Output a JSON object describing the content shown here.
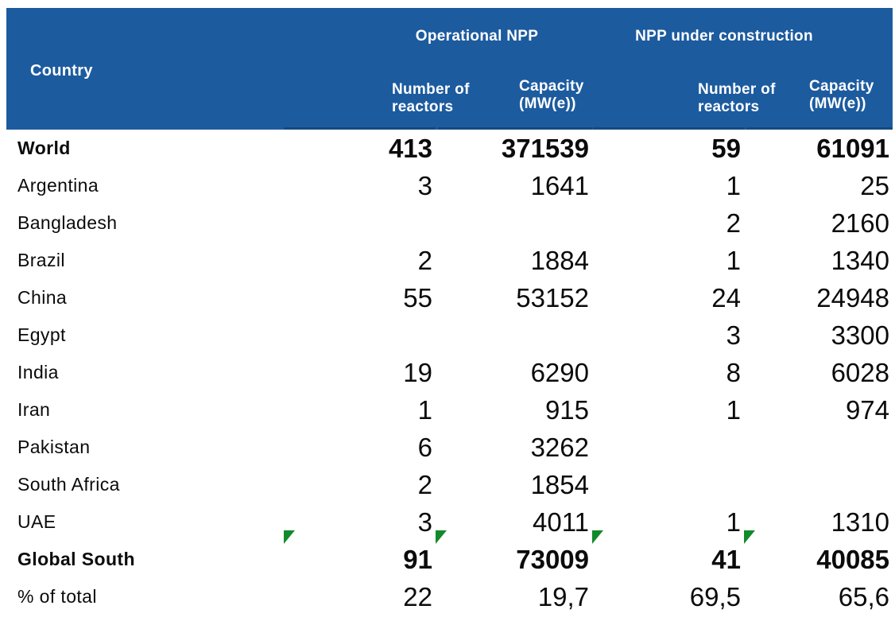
{
  "colors": {
    "header_bg": "#1d5b9f",
    "header_text": "#ffffff",
    "header_edge": "#16497f",
    "flag_green": "#118a2b",
    "body_text": "#0b0b0b"
  },
  "table": {
    "header": {
      "country_label": "Country",
      "group_operational": "Operational NPP",
      "group_construction": "NPP under construction",
      "sub_operational_reactors": {
        "line1": "Number of",
        "line2": "reactors"
      },
      "sub_operational_capacity": {
        "line1": "Capacity",
        "line2": "(MW(e))"
      },
      "sub_construction_reactors": {
        "line1": "Number of",
        "line2": "reactors"
      },
      "sub_construction_capacity": {
        "line1": "Capacity",
        "line2": "(MW(e))"
      }
    },
    "rows": [
      {
        "country": "World",
        "op_reactors": "413",
        "op_capacity": "371539",
        "uc_reactors": "59",
        "uc_capacity": "61091",
        "bold": true,
        "flags": false
      },
      {
        "country": "Argentina",
        "op_reactors": "3",
        "op_capacity": "1641",
        "uc_reactors": "1",
        "uc_capacity": "25",
        "bold": false,
        "flags": false
      },
      {
        "country": "Bangladesh",
        "op_reactors": "",
        "op_capacity": "",
        "uc_reactors": "2",
        "uc_capacity": "2160",
        "bold": false,
        "flags": false
      },
      {
        "country": "Brazil",
        "op_reactors": "2",
        "op_capacity": "1884",
        "uc_reactors": "1",
        "uc_capacity": "1340",
        "bold": false,
        "flags": false
      },
      {
        "country": "China",
        "op_reactors": "55",
        "op_capacity": "53152",
        "uc_reactors": "24",
        "uc_capacity": "24948",
        "bold": false,
        "flags": false
      },
      {
        "country": "Egypt",
        "op_reactors": "",
        "op_capacity": "",
        "uc_reactors": "3",
        "uc_capacity": "3300",
        "bold": false,
        "flags": false
      },
      {
        "country": "India",
        "op_reactors": "19",
        "op_capacity": "6290",
        "uc_reactors": "8",
        "uc_capacity": "6028",
        "bold": false,
        "flags": false
      },
      {
        "country": "Iran",
        "op_reactors": "1",
        "op_capacity": "915",
        "uc_reactors": "1",
        "uc_capacity": "974",
        "bold": false,
        "flags": false
      },
      {
        "country": "Pakistan",
        "op_reactors": "6",
        "op_capacity": "3262",
        "uc_reactors": "",
        "uc_capacity": "",
        "bold": false,
        "flags": false
      },
      {
        "country": "South Africa",
        "op_reactors": "2",
        "op_capacity": "1854",
        "uc_reactors": "",
        "uc_capacity": "",
        "bold": false,
        "flags": false
      },
      {
        "country": "UAE",
        "op_reactors": "3",
        "op_capacity": "4011",
        "uc_reactors": "1",
        "uc_capacity": "1310",
        "bold": false,
        "flags": false
      },
      {
        "country": "Global South",
        "op_reactors": "91",
        "op_capacity": "73009",
        "uc_reactors": "41",
        "uc_capacity": "40085",
        "bold": true,
        "flags": true
      },
      {
        "country": "% of total",
        "op_reactors": "22",
        "op_capacity": "19,7",
        "uc_reactors": "69,5",
        "uc_capacity": "65,6",
        "bold": false,
        "flags": false
      }
    ]
  },
  "chart_data": {
    "type": "table",
    "column_groups": [
      "Operational NPP",
      "NPP under construction"
    ],
    "columns": [
      "Country",
      "Operational NPP - Number of reactors",
      "Operational NPP - Capacity (MW(e))",
      "NPP under construction - Number of reactors",
      "NPP under construction - Capacity (MW(e))"
    ],
    "rows": [
      [
        "World",
        413,
        371539,
        59,
        61091
      ],
      [
        "Argentina",
        3,
        1641,
        1,
        25
      ],
      [
        "Bangladesh",
        null,
        null,
        2,
        2160
      ],
      [
        "Brazil",
        2,
        1884,
        1,
        1340
      ],
      [
        "China",
        55,
        53152,
        24,
        24948
      ],
      [
        "Egypt",
        null,
        null,
        3,
        3300
      ],
      [
        "India",
        19,
        6290,
        8,
        6028
      ],
      [
        "Iran",
        1,
        915,
        1,
        974
      ],
      [
        "Pakistan",
        6,
        3262,
        null,
        null
      ],
      [
        "South Africa",
        2,
        1854,
        null,
        null
      ],
      [
        "UAE",
        3,
        4011,
        1,
        1310
      ],
      [
        "Global South",
        91,
        73009,
        41,
        40085
      ],
      [
        "% of total",
        22,
        "19,7",
        "69,5",
        "65,6"
      ]
    ],
    "notes": "Bold rows: World (totals), Global South (subtotal with green corner markers on its four numeric cells). Decimal commas in % of total row."
  }
}
